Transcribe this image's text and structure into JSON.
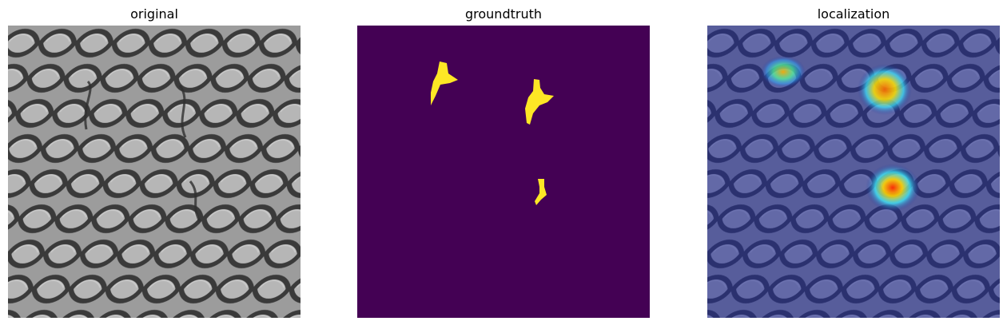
{
  "panels": [
    {
      "title": "original"
    },
    {
      "title": "groundtruth"
    },
    {
      "title": "localization"
    }
  ],
  "colors": {
    "texture_bg": "#9a9a9a",
    "texture_ridge": "#3a3a3a",
    "texture_highlight": "#c8c8c8",
    "mask_bg": "#440154",
    "mask_fg": "#fde725",
    "overlay_tint": "#1f2a9a"
  }
}
